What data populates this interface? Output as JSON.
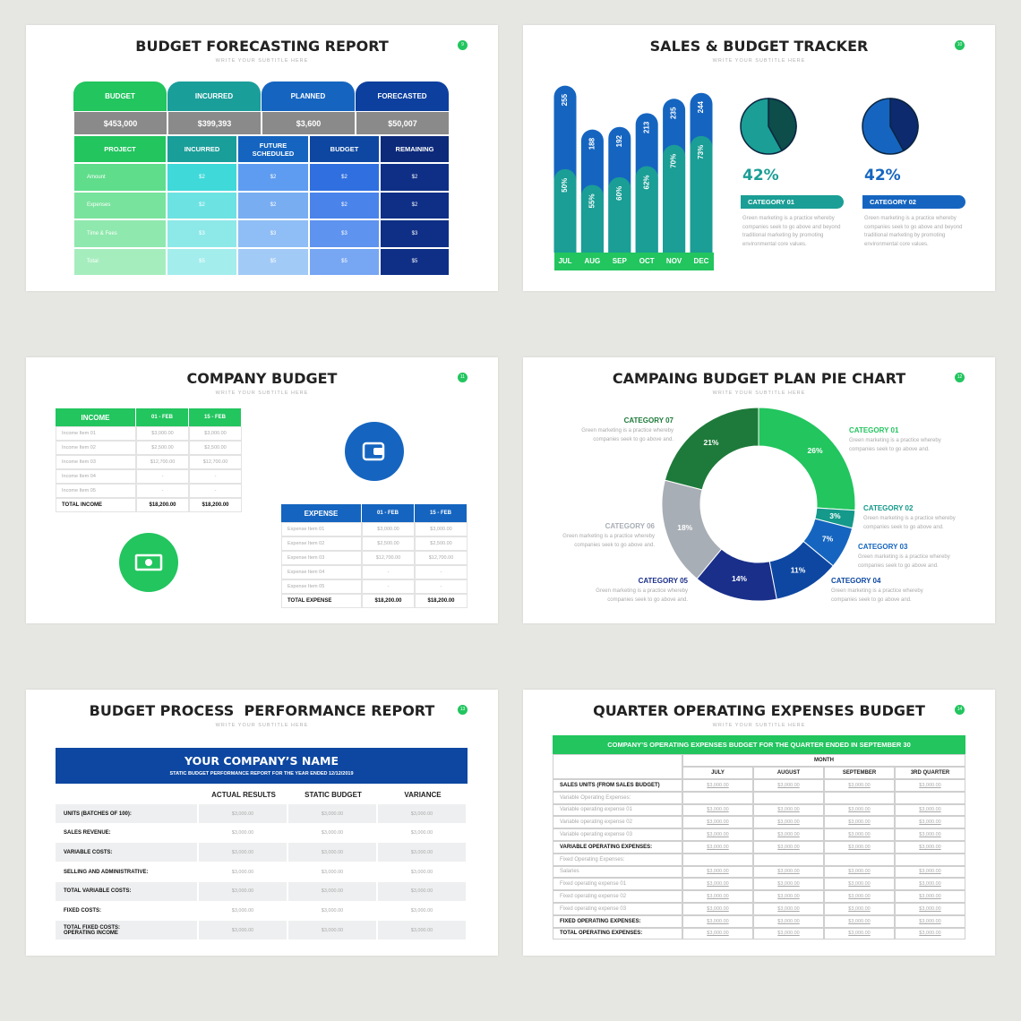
{
  "slides": [
    {
      "title": "BUDGET FORECASTING REPORT",
      "subtitle": "WRITE YOUR SUBTITLE HERE",
      "number": "9",
      "summary": {
        "headers": [
          "BUDGET",
          "INCURRED",
          "PLANNED",
          "FORECASTED"
        ],
        "values": [
          "$453,000",
          "$399,393",
          "$3,600",
          "$50,007"
        ]
      },
      "table": {
        "headers": [
          "PROJECT",
          "INCURRED",
          "FUTURE SCHEDULED",
          "BUDGET",
          "REMAINING"
        ],
        "rows": [
          [
            "Amount",
            "$2",
            "$2",
            "$2",
            "$2"
          ],
          [
            "Expenses",
            "$2",
            "$2",
            "$2",
            "$2"
          ],
          [
            "Time & Fees",
            "$3",
            "$3",
            "$3",
            "$3"
          ],
          [
            "Total",
            "$5",
            "$5",
            "$5",
            "$5"
          ]
        ]
      }
    },
    {
      "title": "SALES & BUDGET TRACKER",
      "subtitle": "WRITE YOUR SUBTITLE HERE",
      "number": "10",
      "chart_data": {
        "type": "bar",
        "categories": [
          "JUL",
          "AUG",
          "SEP",
          "OCT",
          "NOV",
          "DEC"
        ],
        "ylim": [
          0,
          260
        ],
        "category_color": "#22c55e",
        "series": [
          {
            "values": [
              255,
              188,
              192,
              213,
              235,
              244
            ],
            "color": "#1565c0"
          },
          {
            "values": [
              50,
              55,
              60,
              62,
              70,
              73
            ],
            "value_labels": [
              "50%",
              "55%",
              "60%",
              "62%",
              "70%",
              "73%"
            ],
            "color": "#1a9e95"
          }
        ]
      },
      "pies": [
        {
          "type": "pie",
          "value": 42,
          "value_label": "42%",
          "label": "CATEGORY 01",
          "color": "#0d4d4a",
          "rest_color": "#1a9e95",
          "text": "Green marketing is a practice whereby companies seek to go above and beyond traditional marketing by promoting environmental core values."
        },
        {
          "type": "pie",
          "value": 42,
          "value_label": "42%",
          "label": "CATEGORY 02",
          "color": "#0d2a6e",
          "rest_color": "#1565c0",
          "text": "Green marketing is a practice whereby companies seek to go above and beyond traditional marketing by promoting environmental core values."
        }
      ]
    },
    {
      "title": "COMPANY BUDGET",
      "subtitle": "WRITE YOUR SUBTITLE HERE",
      "number": "11",
      "income": {
        "headers": [
          "INCOME",
          "01 - FEB",
          "15 - FEB"
        ],
        "rows": [
          [
            "Income Item 01",
            "$3,000.00",
            "$3,000.00"
          ],
          [
            "Income Item 02",
            "$2,500.00",
            "$2,500.00"
          ],
          [
            "Income Item 03",
            "$12,700.00",
            "$12,700.00"
          ],
          [
            "Income Item 04",
            "-",
            "-"
          ],
          [
            "Income Item 05",
            "-",
            "-"
          ]
        ],
        "total": [
          "TOTAL INCOME",
          "$18,200.00",
          "$18,200.00"
        ]
      },
      "expense": {
        "headers": [
          "EXPENSE",
          "01 - FEB",
          "15 - FEB"
        ],
        "rows": [
          [
            "Expense Item 01",
            "$3,000.00",
            "$3,000.00"
          ],
          [
            "Expense Item 02",
            "$2,500.00",
            "$2,500.00"
          ],
          [
            "Expense Item 03",
            "$12,700.00",
            "$12,700.00"
          ],
          [
            "Expense Item 04",
            "-",
            "-"
          ],
          [
            "Expense Item 05",
            "-",
            "-"
          ]
        ],
        "total": [
          "TOTAL EXPENSE",
          "$18,200.00",
          "$18,200.00"
        ]
      }
    },
    {
      "title": "CAMPAING BUDGET PLAN PIE CHART",
      "subtitle": "WRITE YOUR SUBTITLE HERE",
      "number": "12",
      "chart_data": {
        "type": "donut",
        "categories": [
          "CATEGORY 01",
          "CATEGORY 02",
          "CATEGORY 03",
          "CATEGORY 04",
          "CATEGORY 05",
          "CATEGORY 06",
          "CATEGORY 07"
        ],
        "values": [
          26,
          3,
          7,
          11,
          14,
          18,
          21
        ],
        "value_labels": [
          "26%",
          "3%",
          "7%",
          "11%",
          "14%",
          "18%",
          "21%"
        ],
        "colors": [
          "#22c55e",
          "#14998a",
          "#1565c0",
          "#0d47a1",
          "#1a2f8a",
          "#a8aeb5",
          "#1e7a3a"
        ],
        "descriptions": [
          "Green marketing is a practice whereby companies seek to go above and.",
          "Green marketing is a practice whereby companies seek to go above and.",
          "Green marketing is a practice whereby companies seek to go above and.",
          "Green marketing is a practice whereby companies seek to go above and.",
          "Green marketing is a practice whereby companies seek to go above and.",
          "Green marketing is a practice whereby companies seek to go above and.",
          "Green marketing is a practice whereby companies seek to go above and."
        ]
      }
    },
    {
      "title": "BUDGET PROCESS  PERFORMANCE REPORT",
      "subtitle": "WRITE YOUR SUBTITLE HERE",
      "number": "13",
      "banner_title": "YOUR COMPANY’S NAME",
      "banner_subtitle": "STATIC BUDGET PERFORMANCE REPORT FOR THE YEAR ENDED 12/12/2019",
      "headers": [
        "ACTUAL RESULTS",
        "STATIC BUDGET",
        "VARIANCE"
      ],
      "rows": [
        {
          "label_lines": [
            "UNITS (BATCHES OF 100):"
          ],
          "values": [
            "$3,000.00",
            "$3,000.00",
            "$3,000.00"
          ]
        },
        {
          "label_lines": [
            "SALES REVENUE:"
          ],
          "values": [
            "$3,000.00",
            "$3,000.00",
            "$3,000.00"
          ]
        },
        {
          "label_lines": [
            "VARIABLE COSTS:"
          ],
          "values": [
            "$3,000.00",
            "$3,000.00",
            "$3,000.00"
          ]
        },
        {
          "label_lines": [
            "SELLING AND ADMINISTRATIVE:"
          ],
          "values": [
            "$3,000.00",
            "$3,000.00",
            "$3,000.00"
          ]
        },
        {
          "label_lines": [
            "TOTAL VARIABLE COSTS:"
          ],
          "values": [
            "$3,000.00",
            "$3,000.00",
            "$3,000.00"
          ]
        },
        {
          "label_lines": [
            "FIXED COSTS:"
          ],
          "values": [
            "$3,000.00",
            "$3,000.00",
            "$3,000.00"
          ]
        },
        {
          "label_lines": [
            "TOTAL FIXED COSTS:",
            "OPERATING INCOME"
          ],
          "values": [
            "$3,000.00",
            "$3,000.00",
            "$3,000.00"
          ]
        }
      ]
    },
    {
      "title": "QUARTER OPERATING EXPENSES BUDGET",
      "subtitle": "WRITE YOUR SUBTITLE HERE",
      "number": "14",
      "banner": "COMPANY’S OPERATING EXPENSES BUDGET FOR THE QUARTER ENDED IN SEPTEMBER 30",
      "month_label": "MONTH",
      "headers": [
        "JULY",
        "AUGUST",
        "SEPTEMBER",
        "3RD QUARTER"
      ],
      "rows": [
        {
          "label": "SALES UNITS (FROM SALES BUDGET)",
          "bold": true,
          "values": [
            "$3,000.00",
            "$3,000.00",
            "$3,000.00",
            "$3,000.00"
          ]
        },
        {
          "label": "Variable Operating Expenses:",
          "bold": false
        },
        {
          "label": "Variable operating expense 01",
          "bold": false,
          "values": [
            "$3,000.00",
            "$3,000.00",
            "$3,000.00",
            "$3,000.00"
          ]
        },
        {
          "label": "Variable operating expense 02",
          "bold": false,
          "values": [
            "$3,000.00",
            "$3,000.00",
            "$3,000.00",
            "$3,000.00"
          ]
        },
        {
          "label": "Variable operating expense 03",
          "bold": false,
          "values": [
            "$3,000.00",
            "$3,000.00",
            "$3,000.00",
            "$3,000.00"
          ]
        },
        {
          "label": "VARIABLE OPERATING EXPENSES:",
          "bold": true,
          "values": [
            "$3,000.00",
            "$3,000.00",
            "$3,000.00",
            "$3,000.00"
          ]
        },
        {
          "label": "Fixed Operating Expenses:",
          "bold": false
        },
        {
          "label": "Salaries",
          "bold": false,
          "values": [
            "$3,000.00",
            "$3,000.00",
            "$3,000.00",
            "$3,000.00"
          ]
        },
        {
          "label": "Fixed operating expense 01",
          "bold": false,
          "values": [
            "$3,000.00",
            "$3,000.00",
            "$3,000.00",
            "$3,000.00"
          ]
        },
        {
          "label": "Fixed operating expense 02",
          "bold": false,
          "values": [
            "$3,000.00",
            "$3,000.00",
            "$3,000.00",
            "$3,000.00"
          ]
        },
        {
          "label": "Fixed operating expense 03",
          "bold": false,
          "values": [
            "$3,000.00",
            "$3,000.00",
            "$3,000.00",
            "$3,000.00"
          ]
        },
        {
          "label": "FIXED OPERATING EXPENSES:",
          "bold": true,
          "values": [
            "$3,000.00",
            "$3,000.00",
            "$3,000.00",
            "$3,000.00"
          ]
        },
        {
          "label": "TOTAL OPERATING EXPENSES:",
          "bold": true,
          "values": [
            "$3,000.00",
            "$3,000.00",
            "$3,000.00",
            "$3,000.00"
          ]
        }
      ]
    }
  ]
}
